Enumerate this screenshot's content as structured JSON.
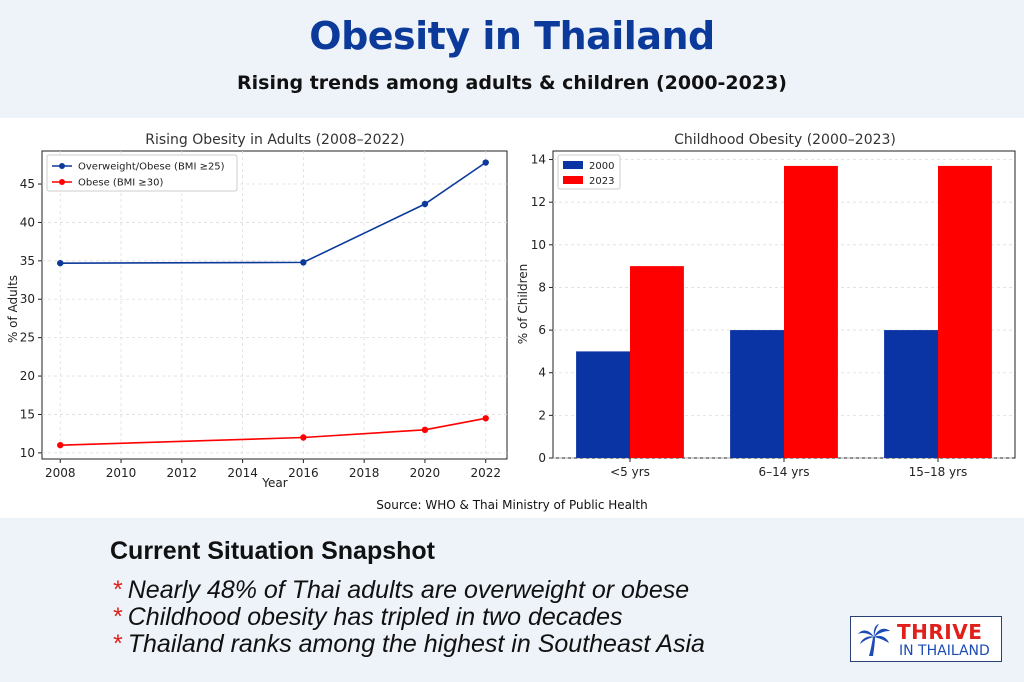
{
  "header": {
    "title": "Obesity in Thailand",
    "subtitle": "Rising trends among adults & children (2000-2023)"
  },
  "source": "Source: WHO & Thai Ministry of Public Health",
  "snapshot": {
    "title": "Current Situation Snapshot",
    "bullet_symbol": "*",
    "bullets": [
      "Nearly 48% of Thai adults are overweight or obese",
      "Childhood obesity has tripled in two decades",
      "Thailand ranks among the highest in Southeast Asia"
    ]
  },
  "logo": {
    "line1": "THRIVE",
    "line2": "IN THAILAND",
    "icon": "palm-tree-icon"
  },
  "colors": {
    "blue": "#0b3a9a",
    "red": "#ff0000",
    "bar_blue": "#0a33a3",
    "accent_red": "#e0201b"
  },
  "chart_data": [
    {
      "type": "line",
      "title": "Rising Obesity in Adults (2008–2022)",
      "xlabel": "Year",
      "ylabel": "% of Adults",
      "xlim": [
        2007.4,
        2022.7
      ],
      "ylim": [
        9.2,
        49.3
      ],
      "xticks": [
        2008,
        2010,
        2012,
        2014,
        2016,
        2018,
        2020,
        2022
      ],
      "yticks": [
        10,
        15,
        20,
        25,
        30,
        35,
        40,
        45
      ],
      "grid": true,
      "legend_position": "top-left",
      "series": [
        {
          "name": "Overweight/Obese (BMI ≥25)",
          "color": "#0b3a9a",
          "x": [
            2008,
            2016,
            2020,
            2022
          ],
          "y": [
            34.7,
            34.8,
            42.4,
            47.8
          ]
        },
        {
          "name": "Obese (BMI ≥30)",
          "color": "#ff0000",
          "x": [
            2008,
            2016,
            2020,
            2022
          ],
          "y": [
            11.0,
            12.0,
            13.0,
            14.5
          ]
        }
      ]
    },
    {
      "type": "bar",
      "title": "Childhood Obesity (2000–2023)",
      "xlabel": "",
      "ylabel": "% of Children",
      "ylim": [
        0,
        14.4
      ],
      "yticks": [
        0,
        2,
        4,
        6,
        8,
        10,
        12,
        14
      ],
      "grid": true,
      "legend_position": "top-left",
      "categories": [
        "<5 yrs",
        "6–14 yrs",
        "15–18 yrs"
      ],
      "series": [
        {
          "name": "2000",
          "color": "#0a33a3",
          "values": [
            5.0,
            6.0,
            6.0
          ]
        },
        {
          "name": "2023",
          "color": "#ff0000",
          "values": [
            9.0,
            13.7,
            13.7
          ]
        }
      ]
    }
  ]
}
